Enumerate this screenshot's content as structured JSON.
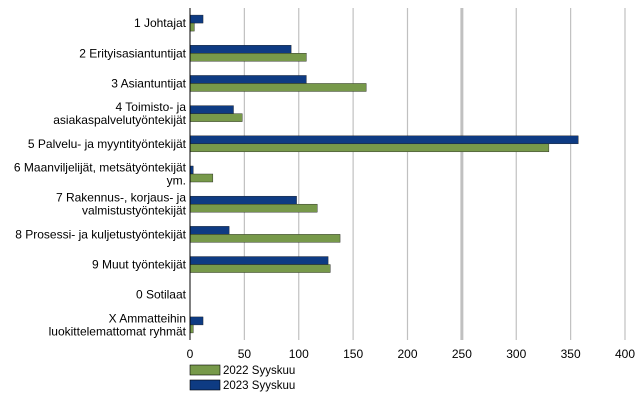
{
  "chart_data": {
    "type": "bar",
    "orientation": "horizontal",
    "categories": [
      [
        "1 Johtajat"
      ],
      [
        "2 Erityisasiantuntijat"
      ],
      [
        "3 Asiantuntijat"
      ],
      [
        "4 Toimisto- ja",
        "asiakaspalvelutyöntekijät"
      ],
      [
        "5 Palvelu- ja myyntityöntekijät"
      ],
      [
        "6 Maanviljelijät, metsätyöntekijät",
        "ym."
      ],
      [
        "7 Rakennus-, korjaus- ja",
        "valmistustyöntekijät"
      ],
      [
        "8 Prosessi- ja kuljetustyöntekijät"
      ],
      [
        "9 Muut työntekijät"
      ],
      [
        "0 Sotilaat"
      ],
      [
        "X Ammatteihin",
        "luokittelemattomat ryhmät"
      ]
    ],
    "series": [
      {
        "name": "2023 Syyskuu",
        "color": "#0e3b83",
        "values": [
          12,
          93,
          107,
          40,
          357,
          3,
          98,
          36,
          127,
          0,
          12
        ]
      },
      {
        "name": "2022 Syyskuu",
        "color": "#77994a",
        "values": [
          4,
          107,
          162,
          48,
          330,
          21,
          117,
          138,
          129,
          0,
          3
        ]
      }
    ],
    "xlim": [
      0,
      400
    ],
    "xticks": [
      0,
      50,
      100,
      150,
      200,
      250,
      300,
      350,
      400
    ],
    "highlight_gridline": 250,
    "legend": {
      "placement": "bottom-left",
      "entries": [
        {
          "label": "2022 Syyskuu",
          "color": "#77994a"
        },
        {
          "label": "2023 Syyskuu",
          "color": "#0e3b83"
        }
      ]
    },
    "grid": true,
    "title": "",
    "xlabel": "",
    "ylabel": ""
  }
}
